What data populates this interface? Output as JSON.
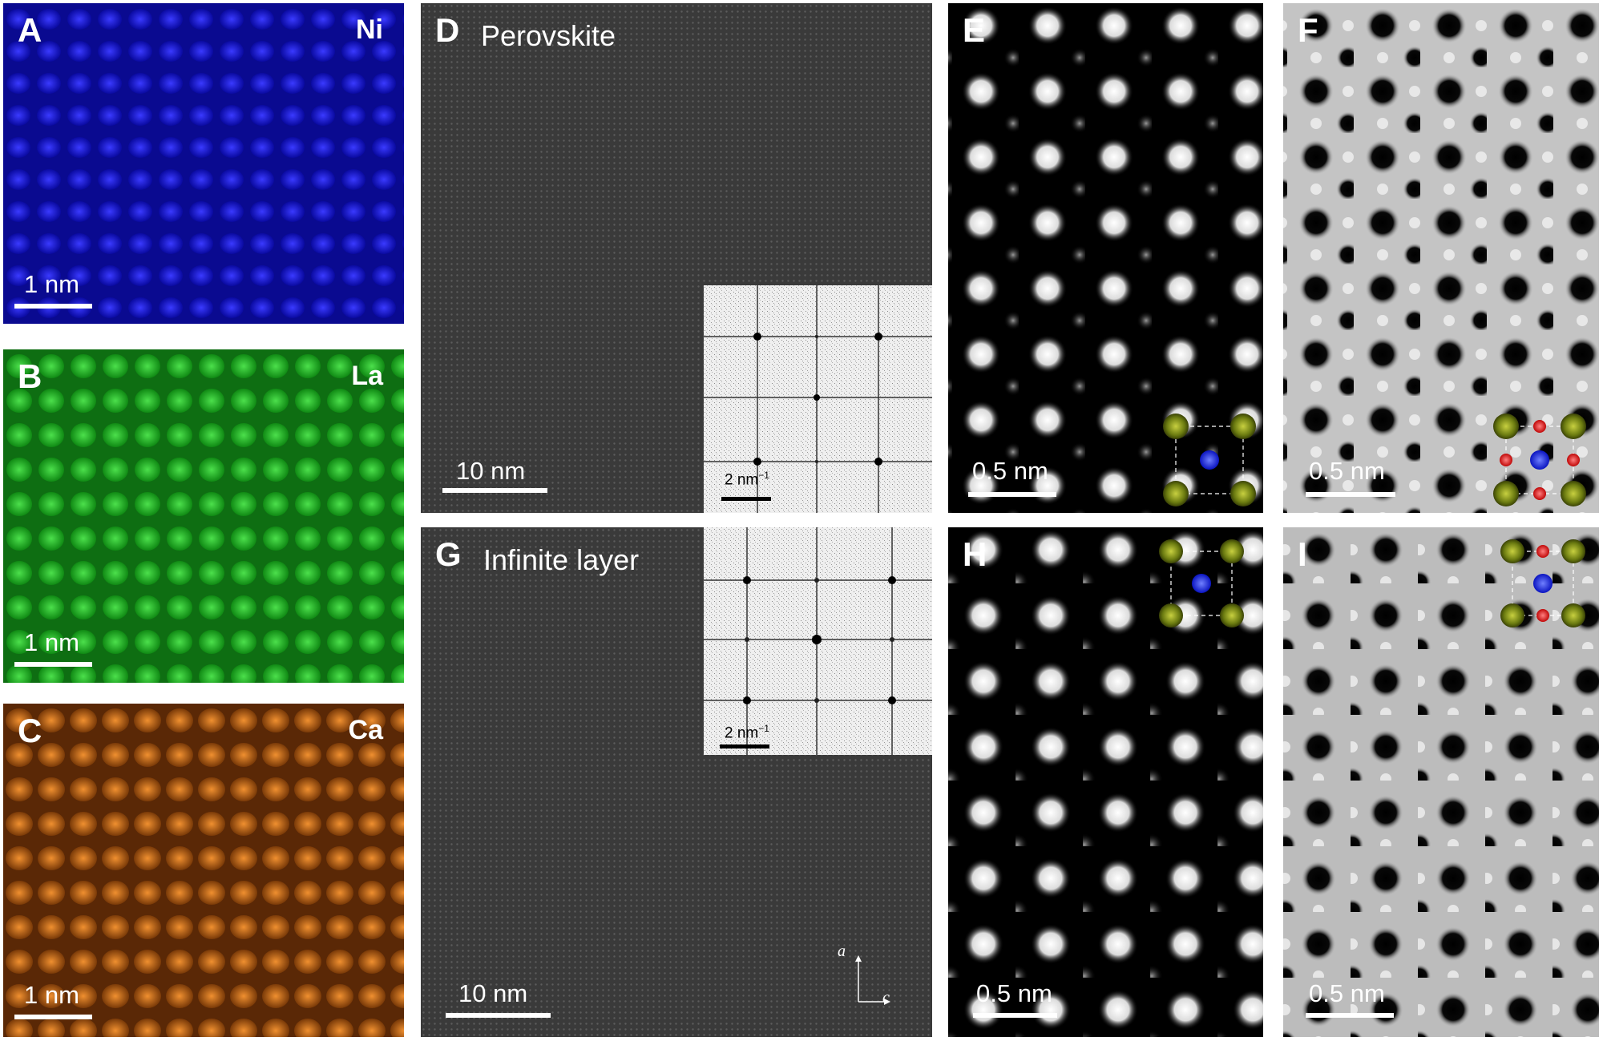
{
  "panels": {
    "A": {
      "letter": "A",
      "element": "Ni",
      "scale": "1 nm",
      "color": "#1a1ae6"
    },
    "B": {
      "letter": "B",
      "element": "La",
      "scale": "1 nm",
      "color": "#22c02a"
    },
    "C": {
      "letter": "C",
      "element": "Ca",
      "scale": "1 nm",
      "color": "#e07818"
    },
    "D": {
      "letter": "D",
      "title": "Perovskite",
      "scale": "10 nm",
      "fft_scale": "2 nm",
      "fft_exp": "−1"
    },
    "E": {
      "letter": "E",
      "scale": "0.5 nm"
    },
    "F": {
      "letter": "F",
      "scale": "0.5 nm"
    },
    "G": {
      "letter": "G",
      "title": "Infinite layer",
      "scale": "10 nm",
      "fft_scale": "2 nm",
      "fft_exp": "−1",
      "axis_a": "a",
      "axis_c": "c"
    },
    "H": {
      "letter": "H",
      "scale": "0.5 nm"
    },
    "I": {
      "letter": "I",
      "scale": "0.5 nm"
    }
  },
  "atom_colors": {
    "la_site": "#7a8a12",
    "ni_site": "#1a2ae0",
    "oxygen": "#e01818"
  }
}
